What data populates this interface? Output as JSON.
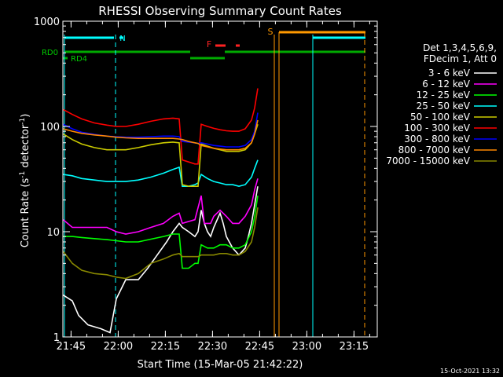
{
  "chart_data": {
    "type": "line",
    "title": "RHESSI Observing Summary Count Rates",
    "xlabel": "Start Time (15-Mar-05 21:42:22)",
    "ylabel_main": "Count Rate (s",
    "ylabel_sup": "-1",
    "ylabel_mid": " detector",
    "ylabel_end": ")",
    "footer_date": "15-Oct-2021 13:32",
    "x_unit": "minutes after 21:42:22",
    "xlim": [
      0,
      100
    ],
    "ylim": [
      1,
      1000
    ],
    "y_scale": "log",
    "x_ticks": [
      {
        "label": "21:45",
        "minute": 2.6
      },
      {
        "label": "22:00",
        "minute": 17.6
      },
      {
        "label": "22:15",
        "minute": 32.6
      },
      {
        "label": "22:30",
        "minute": 47.6
      },
      {
        "label": "22:45",
        "minute": 62.6
      },
      {
        "label": "23:00",
        "minute": 77.6
      },
      {
        "label": "23:15",
        "minute": 92.6
      }
    ],
    "y_ticks": [
      {
        "label": "1",
        "value": 1
      },
      {
        "label": "10",
        "value": 10
      },
      {
        "label": "100",
        "value": 100
      },
      {
        "label": "1000",
        "value": 1000
      }
    ],
    "legend": {
      "placement": "right",
      "header": [
        "Det 1,3,4,5,6,9,",
        "FDecim 1, Att 0"
      ]
    },
    "series": [
      {
        "name": "3 - 6 keV",
        "color": "#ffffff",
        "points": [
          [
            0.1,
            2.5
          ],
          [
            3,
            2.2
          ],
          [
            5,
            1.6
          ],
          [
            8,
            1.3
          ],
          [
            12,
            1.2
          ],
          [
            15,
            1.1
          ],
          [
            17,
            2.3
          ],
          [
            20,
            3.5
          ],
          [
            24,
            3.5
          ],
          [
            27,
            4.5
          ],
          [
            30,
            6
          ],
          [
            33,
            8
          ],
          [
            35,
            10
          ],
          [
            37,
            12
          ],
          [
            38,
            11
          ],
          [
            40,
            10
          ],
          [
            42,
            9
          ],
          [
            43,
            10
          ],
          [
            44,
            16
          ],
          [
            45,
            12
          ],
          [
            46,
            10
          ],
          [
            47,
            9
          ],
          [
            48,
            11
          ],
          [
            50,
            15
          ],
          [
            51,
            12
          ],
          [
            52,
            9
          ],
          [
            54,
            7
          ],
          [
            56,
            6
          ],
          [
            58,
            7
          ],
          [
            59,
            9
          ],
          [
            60,
            12
          ],
          [
            61,
            18
          ],
          [
            62,
            27
          ]
        ]
      },
      {
        "name": "6 - 12 keV",
        "color": "#ff00ff",
        "points": [
          [
            0.1,
            13
          ],
          [
            3,
            11
          ],
          [
            6,
            11
          ],
          [
            10,
            11
          ],
          [
            14,
            11
          ],
          [
            17,
            10
          ],
          [
            20,
            9.5
          ],
          [
            24,
            10
          ],
          [
            28,
            11
          ],
          [
            32,
            12
          ],
          [
            35,
            14
          ],
          [
            37,
            15
          ],
          [
            38,
            12
          ],
          [
            40,
            12.5
          ],
          [
            42,
            13
          ],
          [
            44,
            22
          ],
          [
            45,
            12
          ],
          [
            47,
            12
          ],
          [
            48,
            14
          ],
          [
            50,
            16
          ],
          [
            52,
            14
          ],
          [
            54,
            12
          ],
          [
            56,
            12
          ],
          [
            58,
            14
          ],
          [
            60,
            18
          ],
          [
            61,
            25
          ],
          [
            62,
            32
          ]
        ]
      },
      {
        "name": "12 - 25 keV",
        "color": "#00ff00",
        "points": [
          [
            0.1,
            9
          ],
          [
            3,
            9
          ],
          [
            6,
            8.8
          ],
          [
            10,
            8.6
          ],
          [
            14,
            8.4
          ],
          [
            17,
            8.2
          ],
          [
            20,
            8
          ],
          [
            24,
            8
          ],
          [
            28,
            8.5
          ],
          [
            32,
            9
          ],
          [
            35,
            9.5
          ],
          [
            37,
            9.5
          ],
          [
            38,
            4.5
          ],
          [
            40,
            4.5
          ],
          [
            42,
            5
          ],
          [
            43,
            5
          ],
          [
            44,
            7.5
          ],
          [
            46,
            7
          ],
          [
            48,
            7
          ],
          [
            50,
            7.5
          ],
          [
            52,
            7.5
          ],
          [
            54,
            7
          ],
          [
            56,
            7
          ],
          [
            58,
            7.5
          ],
          [
            60,
            10
          ],
          [
            61,
            14
          ],
          [
            62,
            22
          ]
        ]
      },
      {
        "name": "25 - 50 keV",
        "color": "#00ffff",
        "points": [
          [
            0.1,
            35
          ],
          [
            3,
            34
          ],
          [
            6,
            32
          ],
          [
            10,
            31
          ],
          [
            14,
            30
          ],
          [
            17,
            30
          ],
          [
            20,
            30
          ],
          [
            24,
            31
          ],
          [
            28,
            33
          ],
          [
            32,
            36
          ],
          [
            35,
            39
          ],
          [
            37,
            41
          ],
          [
            38,
            27
          ],
          [
            40,
            27
          ],
          [
            42,
            28
          ],
          [
            43,
            29
          ],
          [
            44,
            35
          ],
          [
            46,
            32
          ],
          [
            48,
            30
          ],
          [
            50,
            29
          ],
          [
            52,
            28
          ],
          [
            54,
            28
          ],
          [
            56,
            27
          ],
          [
            58,
            28
          ],
          [
            60,
            33
          ],
          [
            61,
            40
          ],
          [
            62,
            48
          ]
        ]
      },
      {
        "name": "50 - 100 keV",
        "color": "#cccc00",
        "points": [
          [
            0.1,
            85
          ],
          [
            3,
            75
          ],
          [
            6,
            68
          ],
          [
            10,
            63
          ],
          [
            14,
            60
          ],
          [
            17,
            60
          ],
          [
            20,
            60
          ],
          [
            24,
            63
          ],
          [
            28,
            67
          ],
          [
            32,
            70
          ],
          [
            35,
            71
          ],
          [
            37,
            70
          ],
          [
            38,
            28
          ],
          [
            40,
            27
          ],
          [
            42,
            27
          ],
          [
            43,
            27
          ],
          [
            44,
            68
          ],
          [
            46,
            65
          ],
          [
            48,
            62
          ],
          [
            50,
            60
          ],
          [
            52,
            58
          ],
          [
            54,
            58
          ],
          [
            56,
            58
          ],
          [
            58,
            60
          ],
          [
            60,
            70
          ],
          [
            61,
            85
          ],
          [
            62,
            105
          ]
        ]
      },
      {
        "name": "100 - 300 keV",
        "color": "#ff0000",
        "points": [
          [
            0.1,
            145
          ],
          [
            3,
            130
          ],
          [
            6,
            118
          ],
          [
            10,
            108
          ],
          [
            14,
            103
          ],
          [
            17,
            100
          ],
          [
            20,
            100
          ],
          [
            24,
            105
          ],
          [
            28,
            112
          ],
          [
            32,
            118
          ],
          [
            35,
            120
          ],
          [
            37,
            118
          ],
          [
            38,
            48
          ],
          [
            40,
            46
          ],
          [
            42,
            44
          ],
          [
            43,
            44
          ],
          [
            44,
            105
          ],
          [
            46,
            100
          ],
          [
            48,
            96
          ],
          [
            50,
            93
          ],
          [
            52,
            91
          ],
          [
            54,
            90
          ],
          [
            56,
            90
          ],
          [
            58,
            95
          ],
          [
            60,
            115
          ],
          [
            61,
            150
          ],
          [
            62,
            230
          ]
        ]
      },
      {
        "name": "300 - 800 keV",
        "color": "#0000ff",
        "points": [
          [
            0.1,
            105
          ],
          [
            3,
            95
          ],
          [
            6,
            88
          ],
          [
            10,
            84
          ],
          [
            14,
            81
          ],
          [
            17,
            80
          ],
          [
            20,
            79
          ],
          [
            24,
            79
          ],
          [
            28,
            80
          ],
          [
            32,
            81
          ],
          [
            35,
            81
          ],
          [
            37,
            80
          ],
          [
            38,
            72
          ],
          [
            40,
            71
          ],
          [
            42,
            70
          ],
          [
            43,
            69
          ],
          [
            44,
            70
          ],
          [
            46,
            68
          ],
          [
            48,
            66
          ],
          [
            50,
            65
          ],
          [
            52,
            64
          ],
          [
            54,
            64
          ],
          [
            56,
            64
          ],
          [
            58,
            66
          ],
          [
            60,
            75
          ],
          [
            61,
            90
          ],
          [
            62,
            135
          ]
        ]
      },
      {
        "name": "800 - 7000 keV",
        "color": "#ff8800",
        "points": [
          [
            0.1,
            95
          ],
          [
            3,
            90
          ],
          [
            6,
            86
          ],
          [
            10,
            83
          ],
          [
            14,
            81
          ],
          [
            17,
            79
          ],
          [
            20,
            78
          ],
          [
            24,
            77
          ],
          [
            28,
            77
          ],
          [
            32,
            77
          ],
          [
            35,
            77
          ],
          [
            37,
            76
          ],
          [
            38,
            75
          ],
          [
            40,
            72
          ],
          [
            42,
            70
          ],
          [
            43,
            69
          ],
          [
            44,
            66
          ],
          [
            46,
            64
          ],
          [
            48,
            62
          ],
          [
            50,
            61
          ],
          [
            52,
            60
          ],
          [
            54,
            60
          ],
          [
            56,
            60
          ],
          [
            58,
            62
          ],
          [
            60,
            70
          ],
          [
            61,
            85
          ],
          [
            62,
            115
          ]
        ]
      },
      {
        "name": "7000 - 15000 keV",
        "color": "#888800",
        "points": [
          [
            0.1,
            6.5
          ],
          [
            3,
            5
          ],
          [
            6,
            4.3
          ],
          [
            10,
            4
          ],
          [
            14,
            3.9
          ],
          [
            17,
            3.7
          ],
          [
            20,
            3.6
          ],
          [
            24,
            4
          ],
          [
            28,
            5
          ],
          [
            32,
            5.5
          ],
          [
            35,
            6
          ],
          [
            37,
            6.2
          ],
          [
            38,
            5.8
          ],
          [
            40,
            5.8
          ],
          [
            42,
            5.8
          ],
          [
            43,
            5.8
          ],
          [
            44,
            6
          ],
          [
            46,
            6
          ],
          [
            48,
            6
          ],
          [
            50,
            6.2
          ],
          [
            52,
            6.2
          ],
          [
            54,
            6
          ],
          [
            56,
            6
          ],
          [
            58,
            6.5
          ],
          [
            60,
            8
          ],
          [
            61,
            11
          ],
          [
            62,
            17
          ]
        ]
      }
    ],
    "flag_labels": {
      "night": "N",
      "rd0": "RD0",
      "rd4": "RD4",
      "flare": "F",
      "saa": "S"
    }
  }
}
